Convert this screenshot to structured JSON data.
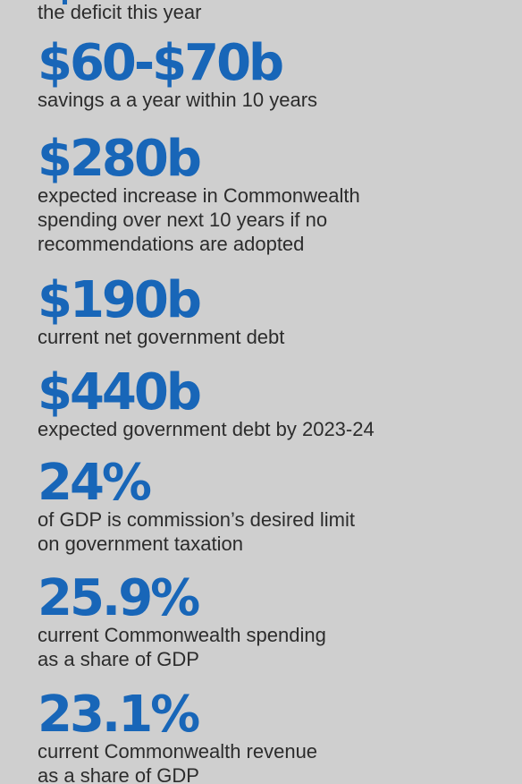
{
  "intro": {
    "text": "the deficit this year"
  },
  "stats": [
    {
      "value": "$60-$70b",
      "description": "savings a a year within 10 years"
    },
    {
      "value": "$280b",
      "description": "expected increase in Commonwealth\nspending over next 10 years if no\nrecommendations are adopted"
    },
    {
      "value": "$190b",
      "description": "current net government debt"
    },
    {
      "value": "$440b",
      "description": "expected government debt by 2023-24"
    },
    {
      "value": "24%",
      "description": "of GDP is commission’s desired limit\non government taxation"
    },
    {
      "value": "25.9%",
      "description": "current Commonwealth spending\nas a share of GDP"
    },
    {
      "value": "23.1%",
      "description": "current Commonwealth revenue\nas a share of GDP"
    }
  ],
  "colors": {
    "accent": "#1866b8",
    "background": "#cfcfcf",
    "text": "#2c2c2c"
  }
}
